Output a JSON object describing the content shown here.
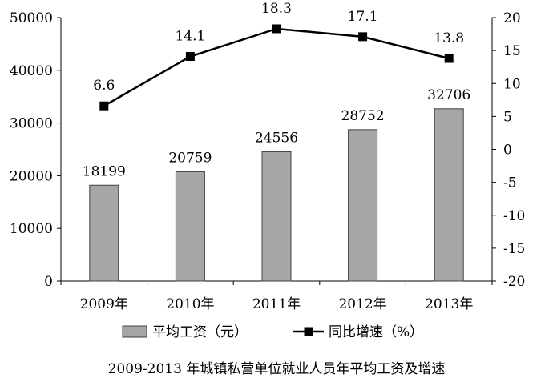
{
  "chart_data": {
    "type": "bar+line",
    "caption": "2009-2013 年城镇私营单位就业人员年平均工资及增速",
    "categories": [
      "2009年",
      "2010年",
      "2011年",
      "2012年",
      "2013年"
    ],
    "series": [
      {
        "name": "平均工资（元）",
        "type": "bar",
        "axis": "left",
        "values": [
          18199,
          20759,
          24556,
          28752,
          32706
        ],
        "labels": [
          "18199",
          "20759",
          "24556",
          "28752",
          "32706"
        ],
        "color": "#a6a6a6"
      },
      {
        "name": "同比增速（%）",
        "type": "line",
        "axis": "right",
        "values": [
          6.6,
          14.1,
          18.3,
          17.1,
          13.8
        ],
        "labels": [
          "6.6",
          "14.1",
          "18.3",
          "17.1",
          "13.8"
        ],
        "color": "#000000",
        "marker": "square"
      }
    ],
    "y_left": {
      "ylim": [
        0,
        50000
      ],
      "ticks": [
        "0",
        "10000",
        "20000",
        "30000",
        "40000",
        "50000"
      ]
    },
    "y_right": {
      "ylim": [
        -20,
        20
      ],
      "ticks": [
        "-20",
        "-15",
        "-10",
        "-5",
        "0",
        "5",
        "10",
        "15",
        "20"
      ]
    },
    "grid": false,
    "legend_position": "bottom"
  }
}
